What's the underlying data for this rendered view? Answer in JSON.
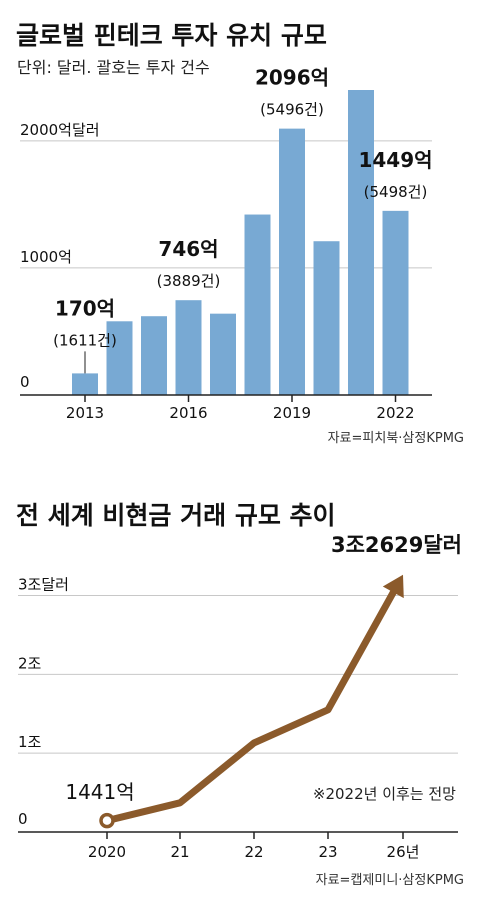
{
  "colors": {
    "bar": "#78a9d3",
    "line": "#8b5a2b",
    "gridline": "#c8c8c8",
    "axis": "#222222",
    "text": "#111111"
  },
  "chart_data": [
    {
      "type": "bar",
      "title": "글로벌 핀테크 투자 유치 규모",
      "subtitle": "단위: 달러. 괄호는 투자 건수",
      "source": "자료=피치북·삼정KPMG",
      "x": [
        2013,
        2014,
        2015,
        2016,
        2017,
        2018,
        2019,
        2020,
        2021,
        2022
      ],
      "values": [
        170,
        580,
        620,
        746,
        640,
        1420,
        2096,
        1210,
        2400,
        1449
      ],
      "tick_labels": [
        "2013",
        "2016",
        "2019",
        "2022"
      ],
      "tick_years": [
        2013,
        2016,
        2019,
        2022
      ],
      "y_tick_labels": [
        "0",
        "1000억",
        "2000억달러"
      ],
      "y_tick_values": [
        0,
        1000,
        2000
      ],
      "ylim": [
        0,
        2400
      ],
      "grid": true,
      "annotations": [
        {
          "year": 2013,
          "value": "170억",
          "count": "(1611건)"
        },
        {
          "year": 2016,
          "value": "746억",
          "count": "(3889건)"
        },
        {
          "year": 2019,
          "value": "2096억",
          "count": "(5496건)"
        },
        {
          "year": 2022,
          "value": "1449억",
          "count": "(5498건)"
        }
      ]
    },
    {
      "type": "line",
      "title": "전 세계 비현금 거래 규모 추이",
      "source": "자료=캡제미니·삼정KPMG",
      "note": "※2022년 이후는 전망",
      "x": [
        2020,
        2021,
        2022,
        2023,
        2026
      ],
      "values": [
        0.1441,
        0.37,
        1.13,
        1.55,
        3.2629
      ],
      "tick_labels": [
        "2020",
        "21",
        "22",
        "23",
        "26년"
      ],
      "y_tick_labels": [
        "0",
        "1조",
        "2조",
        "3조달러"
      ],
      "y_tick_values": [
        0,
        1,
        2,
        3
      ],
      "ylim": [
        0,
        3.4
      ],
      "grid": true,
      "start_label": "1441억",
      "end_label": "3조2629달러"
    }
  ]
}
